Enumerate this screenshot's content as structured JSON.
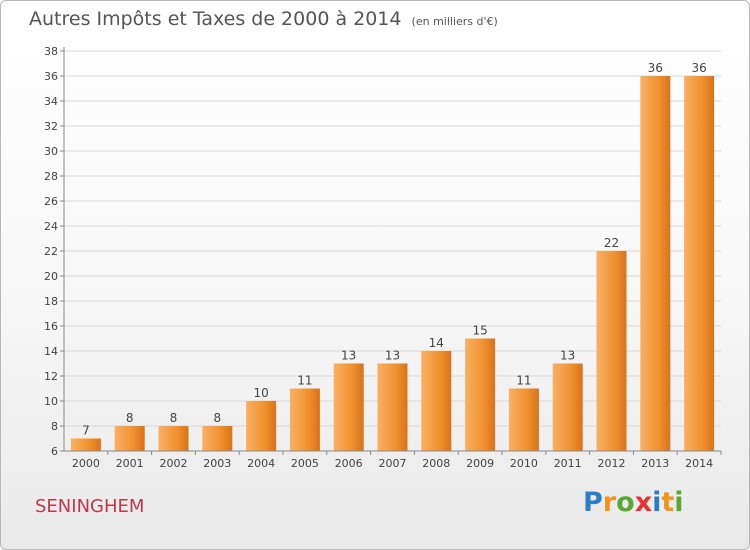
{
  "title": "Autres Impôts et Taxes de 2000 à 2014",
  "subtitle": "(en milliers d'€)",
  "place_name": "SENINGHEM",
  "logo": {
    "letters": [
      "P",
      "r",
      "o",
      "x",
      "i",
      "t",
      "i"
    ],
    "colors": [
      "#2a7fc4",
      "#f2941c",
      "#5aa832",
      "#e8322f",
      "#2a7fc4",
      "#f2941c",
      "#5aa832"
    ]
  },
  "colors": {
    "bar": "#f0922e",
    "bar_light": "#f9b065",
    "bar_dark": "#d9731a",
    "grid": "#d8d8d8",
    "axis": "#888888"
  },
  "chart_data": {
    "type": "bar",
    "title": "Autres Impôts et Taxes de 2000 à 2014",
    "subtitle": "(en milliers d'€)",
    "categories": [
      "2000",
      "2001",
      "2002",
      "2003",
      "2004",
      "2005",
      "2006",
      "2007",
      "2008",
      "2009",
      "2010",
      "2011",
      "2012",
      "2013",
      "2014"
    ],
    "values": [
      7,
      8,
      8,
      8,
      10,
      11,
      13,
      13,
      14,
      15,
      11,
      13,
      22,
      36,
      36
    ],
    "value_labels": [
      "7",
      "8",
      "8",
      "8",
      "10",
      "11",
      "13",
      "13",
      "14",
      "15",
      "11",
      "13",
      "22",
      "36",
      "36"
    ],
    "ylim": [
      6,
      38
    ],
    "yticks": [
      6,
      8,
      10,
      12,
      14,
      16,
      18,
      20,
      22,
      24,
      26,
      28,
      30,
      32,
      34,
      36,
      38
    ],
    "grid": true,
    "xlabel": "",
    "ylabel": ""
  }
}
